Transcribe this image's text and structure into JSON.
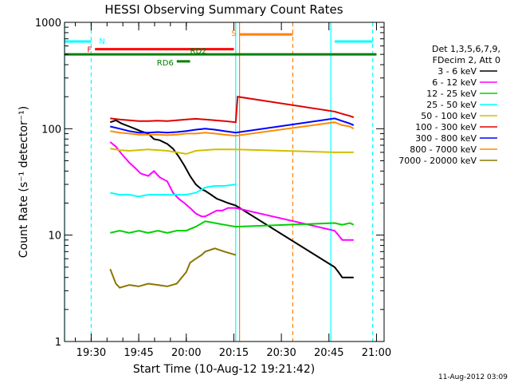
{
  "chart_data": {
    "type": "line",
    "title": "HESSI Observing Summary Count Rates",
    "xlabel": "Start Time (10-Aug-12 19:21:42)",
    "ylabel": "Count Rate (s⁻¹ detector⁻¹)",
    "yscale": "log",
    "ylim": [
      1,
      1000
    ],
    "xlim_minutes": [
      19.36,
      21.04
    ],
    "x_ticks": [
      "19:30",
      "19:45",
      "20:00",
      "20:15",
      "20:30",
      "20:45",
      "21:00"
    ],
    "y_ticks": [
      "1",
      "10",
      "100",
      "1000"
    ],
    "legend": {
      "position": "right",
      "header": [
        "Det 1,3,5,6,7,9,",
        "FDecim 2, Att 0"
      ]
    },
    "series": [
      {
        "name": "3 - 6 keV",
        "color": "#000000",
        "x": [
          19.6,
          19.63,
          19.66,
          19.7,
          19.73,
          19.76,
          19.8,
          19.83,
          19.86,
          19.9,
          19.93,
          19.96,
          19.99,
          20.02,
          20.05,
          20.08,
          20.1,
          20.13,
          20.16,
          20.19,
          20.22,
          20.26,
          20.78,
          20.8,
          20.82,
          20.85,
          20.88
        ],
        "y": [
          115,
          120,
          112,
          105,
          100,
          95,
          90,
          80,
          78,
          72,
          65,
          55,
          45,
          36,
          30,
          27,
          26,
          24,
          22,
          21,
          20,
          19,
          5,
          4.5,
          4,
          4,
          4
        ]
      },
      {
        "name": "6 - 12 keV",
        "color": "#ff00ff",
        "x": [
          19.6,
          19.63,
          19.66,
          19.7,
          19.73,
          19.76,
          19.8,
          19.83,
          19.86,
          19.9,
          19.93,
          19.96,
          19.99,
          20.02,
          20.05,
          20.08,
          20.1,
          20.13,
          20.16,
          20.19,
          20.22,
          20.26,
          20.78,
          20.8,
          20.82,
          20.85,
          20.88
        ],
        "y": [
          75,
          68,
          58,
          48,
          43,
          38,
          36,
          40,
          35,
          32,
          25,
          22,
          20,
          18,
          16,
          15,
          15,
          16,
          17,
          17,
          18,
          18,
          11,
          10,
          9,
          9,
          9
        ]
      },
      {
        "name": "12 - 25 keV",
        "color": "#00d000",
        "x": [
          19.6,
          19.65,
          19.7,
          19.75,
          19.8,
          19.85,
          19.9,
          19.95,
          20.0,
          20.05,
          20.1,
          20.15,
          20.2,
          20.26,
          20.78,
          20.82,
          20.86,
          20.88
        ],
        "y": [
          10.5,
          11,
          10.5,
          11,
          10.5,
          11,
          10.5,
          11,
          11,
          12,
          13.5,
          13,
          12.5,
          12,
          13,
          12.5,
          13,
          12.5
        ]
      },
      {
        "name": "25 - 50 keV",
        "color": "#00ffff",
        "x": [
          19.6,
          19.65,
          19.7,
          19.75,
          19.8,
          19.85,
          19.9,
          19.95,
          20.0,
          20.05,
          20.1,
          20.15,
          20.2,
          20.26
        ],
        "y": [
          25,
          24,
          24,
          23,
          24,
          24,
          24,
          24,
          24,
          25,
          28,
          29,
          29,
          30
        ]
      },
      {
        "name": "50 - 100 keV",
        "color": "#d0c000",
        "x": [
          19.6,
          19.65,
          19.7,
          19.75,
          19.8,
          19.85,
          19.9,
          19.95,
          20.0,
          20.05,
          20.1,
          20.15,
          20.2,
          20.26,
          20.78,
          20.82,
          20.86,
          20.88
        ],
        "y": [
          65,
          63,
          62,
          63,
          64,
          63,
          62,
          60,
          58,
          62,
          63,
          64,
          64,
          64,
          60,
          60,
          60,
          60
        ]
      },
      {
        "name": "100 - 300 keV",
        "color": "#e00000",
        "x": [
          19.6,
          19.65,
          19.7,
          19.75,
          19.8,
          19.85,
          19.9,
          19.95,
          20.0,
          20.05,
          20.1,
          20.15,
          20.2,
          20.26,
          20.27,
          20.78,
          20.82,
          20.86,
          20.88
        ],
        "y": [
          125,
          122,
          120,
          118,
          118,
          119,
          118,
          120,
          122,
          124,
          122,
          120,
          118,
          115,
          200,
          145,
          138,
          132,
          128
        ]
      },
      {
        "name": "300 - 800 keV",
        "color": "#0000ff",
        "x": [
          19.6,
          19.65,
          19.7,
          19.75,
          19.8,
          19.85,
          19.9,
          19.95,
          20.0,
          20.05,
          20.1,
          20.15,
          20.2,
          20.26,
          20.78,
          20.82,
          20.86,
          20.88
        ],
        "y": [
          105,
          100,
          95,
          92,
          92,
          93,
          92,
          93,
          95,
          98,
          100,
          98,
          95,
          92,
          125,
          118,
          112,
          108
        ]
      },
      {
        "name": "800 - 7000 keV",
        "color": "#ff8c00",
        "x": [
          19.6,
          19.65,
          19.7,
          19.75,
          19.8,
          19.85,
          19.9,
          19.95,
          20.0,
          20.05,
          20.1,
          20.15,
          20.2,
          20.26,
          20.78,
          20.82,
          20.86,
          20.88
        ],
        "y": [
          95,
          92,
          90,
          88,
          88,
          88,
          87,
          88,
          90,
          90,
          92,
          90,
          88,
          86,
          115,
          108,
          105,
          100
        ]
      },
      {
        "name": "7000 - 20000 keV",
        "color": "#8b7500",
        "x": [
          19.6,
          19.63,
          19.65,
          19.7,
          19.75,
          19.8,
          19.85,
          19.9,
          19.95,
          20.0,
          20.02,
          20.05,
          20.08,
          20.1,
          20.15,
          20.2,
          20.26
        ],
        "y": [
          4.8,
          3.5,
          3.2,
          3.4,
          3.3,
          3.5,
          3.4,
          3.3,
          3.5,
          4.5,
          5.5,
          6,
          6.5,
          7,
          7.5,
          7,
          6.5
        ]
      }
    ],
    "flags": [
      {
        "label": "N",
        "color": "#00ffff",
        "y": 660,
        "segments": [
          [
            19.36,
            19.5
          ],
          [
            20.78,
            20.98
          ]
        ]
      },
      {
        "label": "F",
        "color": "#ff0000",
        "y": 560,
        "segments": [
          [
            19.52,
            20.25
          ]
        ]
      },
      {
        "label": "S",
        "color": "#ff8000",
        "y": 770,
        "segments": [
          [
            20.28,
            20.56
          ]
        ]
      },
      {
        "label": "RD2",
        "color": "#008000",
        "y": 500,
        "segments": [
          [
            19.36,
            21.0
          ]
        ]
      },
      {
        "label": "RD6",
        "color": "#008000",
        "y": 430,
        "segments": [
          [
            19.95,
            20.02
          ]
        ]
      }
    ],
    "vlines": [
      {
        "x": 19.36,
        "color": "#00ffff",
        "style": "solid"
      },
      {
        "x": 19.5,
        "color": "#00ffff",
        "style": "dashed"
      },
      {
        "x": 20.28,
        "color": "#ff8000",
        "style": "solid"
      },
      {
        "x": 20.26,
        "color": "#00ffff",
        "style": "solid"
      },
      {
        "x": 20.56,
        "color": "#ff8000",
        "style": "dashed"
      },
      {
        "x": 20.76,
        "color": "#00ffff",
        "style": "solid"
      },
      {
        "x": 20.98,
        "color": "#00ffff",
        "style": "dashed"
      }
    ]
  },
  "footer": {
    "timestamp": "11-Aug-2012 03:09"
  }
}
